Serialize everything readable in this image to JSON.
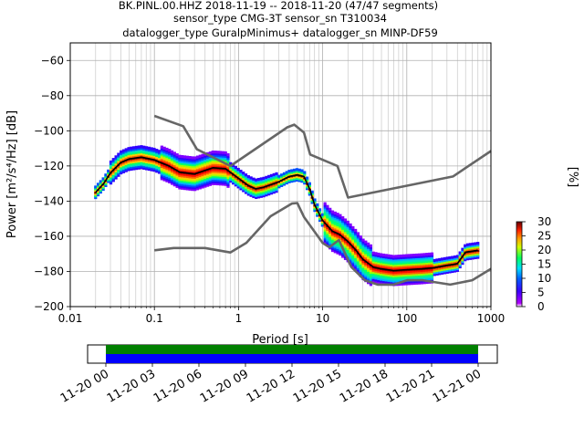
{
  "chart_data": [
    {
      "type": "line",
      "title_lines": [
        "BK.PINL.00.HHZ   2018-11-19 -- 2018-11-20  (47/47 segments)",
        "sensor_type CMG-3T sensor_sn T310034",
        "datalogger_type GuralpMinimus+ datalogger_sn MINP-DF59"
      ],
      "xlabel": "Period [s]",
      "ylabel": "Power [m²/s⁴/Hz] [dB]",
      "x_scale": "log",
      "xlim": [
        0.01,
        1000
      ],
      "ylim": [
        -200,
        -50
      ],
      "x_ticks": [
        {
          "v": 0.01,
          "label": "0.01"
        },
        {
          "v": 0.1,
          "label": "0.1"
        },
        {
          "v": 1,
          "label": "1"
        },
        {
          "v": 10,
          "label": "10"
        },
        {
          "v": 100,
          "label": "100"
        },
        {
          "v": 1000,
          "label": "1000"
        }
      ],
      "y_ticks": [
        {
          "v": -60,
          "label": "−60"
        },
        {
          "v": -80,
          "label": "−80"
        },
        {
          "v": -100,
          "label": "−100"
        },
        {
          "v": -120,
          "label": "−120"
        },
        {
          "v": -140,
          "label": "−140"
        },
        {
          "v": -160,
          "label": "−160"
        },
        {
          "v": -180,
          "label": "−180"
        },
        {
          "v": -200,
          "label": "−200"
        }
      ],
      "grid": true,
      "series": [
        {
          "color": "#666666",
          "x": [
            0.1,
            0.22,
            0.32,
            0.8,
            3.8,
            4.6,
            6.0,
            7.1,
            15.0,
            20.0,
            354.0,
            1000.0
          ],
          "y": [
            -91.5,
            -97.4,
            -110.5,
            -120.0,
            -98.0,
            -96.5,
            -101.0,
            -113.5,
            -120.0,
            -138.0,
            -126.0,
            -111.5
          ]
        },
        {
          "color": "#666666",
          "x": [
            0.1,
            0.17,
            0.4,
            0.8,
            1.24,
            2.4,
            4.3,
            5.0,
            6.0,
            10.0,
            12.0,
            15.6,
            21.9,
            31.6,
            45.0,
            70.0,
            101.0,
            154.0,
            328.0,
            600.0,
            1000.0
          ],
          "y": [
            -168.0,
            -166.7,
            -166.7,
            -169.2,
            -163.7,
            -148.6,
            -141.4,
            -141.1,
            -149.0,
            -163.8,
            -166.2,
            -162.1,
            -177.5,
            -185.0,
            -187.5,
            -187.5,
            -185.0,
            -185.0,
            -187.5,
            -185.0,
            -178.5
          ]
        },
        {
          "color": "#000000",
          "x": [
            0.02,
            0.025,
            0.03,
            0.04,
            0.05,
            0.07,
            0.1,
            0.15,
            0.2,
            0.3,
            0.5,
            0.7,
            1.0,
            1.3,
            1.6,
            2.0,
            3.0,
            4.0,
            5.0,
            6.0,
            7.0,
            8.0,
            10.0,
            13.0,
            16.0,
            20.0,
            25.0,
            30.0,
            40.0,
            50.0,
            70.0,
            100.0,
            150.0,
            200.0,
            300.0,
            350.0,
            400.0,
            500.0,
            700.0
          ],
          "y": [
            -135.0,
            -130.0,
            -124.0,
            -118.0,
            -116.0,
            -115.0,
            -116.5,
            -120.0,
            -123.5,
            -124.5,
            -121.0,
            -121.5,
            -127.0,
            -131.0,
            -133.0,
            -132.0,
            -129.0,
            -126.0,
            -125.0,
            -126.0,
            -133.0,
            -142.0,
            -151.0,
            -157.0,
            -159.0,
            -163.0,
            -168.0,
            -173.0,
            -177.5,
            -178.5,
            -179.5,
            -179.0,
            -178.5,
            -178.0,
            -176.5,
            -176.0,
            -175.5,
            -169.0,
            -168.0
          ]
        }
      ]
    },
    {
      "type": "heatmap",
      "colorbar_label": "[%]",
      "colorbar_range": [
        0,
        30
      ],
      "colorbar_ticks": [
        "0",
        "5",
        "10",
        "15",
        "20",
        "25",
        "30"
      ]
    },
    {
      "type": "timeline",
      "ticks": [
        "11-20 00",
        "11-20 03",
        "11-20 06",
        "11-20 09",
        "11-20 12",
        "11-20 15",
        "11-20 18",
        "11-20 21",
        "11-21 00"
      ],
      "bar_colors": [
        "#008000",
        "#0000ff"
      ]
    }
  ]
}
